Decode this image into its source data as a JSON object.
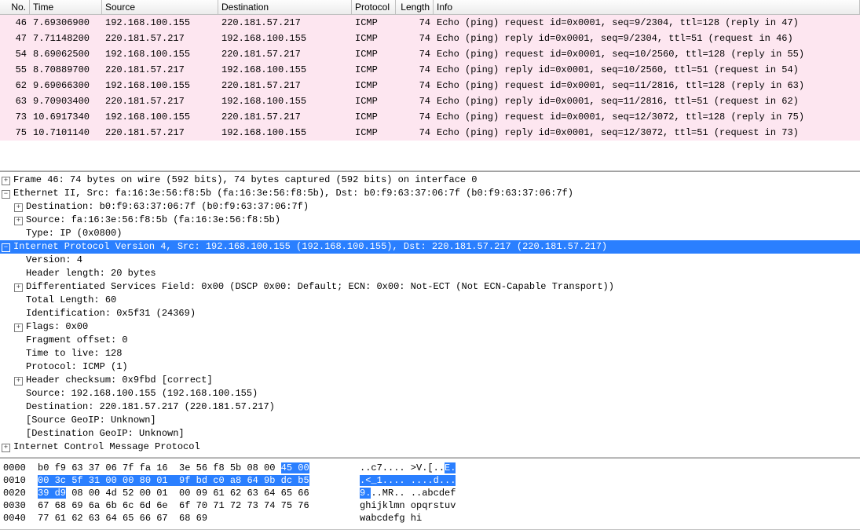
{
  "colors": {
    "row_bg": "#fde6f0",
    "select_bg": "#2a7fff",
    "select_fg": "#ffffff"
  },
  "packet_list": {
    "columns": [
      "No.",
      "Time",
      "Source",
      "Destination",
      "Protocol",
      "Length",
      "Info"
    ],
    "rows": [
      {
        "no": "46",
        "time": "7.69306900",
        "src": "192.168.100.155",
        "dst": "220.181.57.217",
        "proto": "ICMP",
        "len": "74",
        "info": "Echo (ping) request  id=0x0001, seq=9/2304, ttl=128 (reply in 47)"
      },
      {
        "no": "47",
        "time": "7.71148200",
        "src": "220.181.57.217",
        "dst": "192.168.100.155",
        "proto": "ICMP",
        "len": "74",
        "info": "Echo (ping) reply    id=0x0001, seq=9/2304, ttl=51 (request in 46)"
      },
      {
        "no": "54",
        "time": "8.69062500",
        "src": "192.168.100.155",
        "dst": "220.181.57.217",
        "proto": "ICMP",
        "len": "74",
        "info": "Echo (ping) request  id=0x0001, seq=10/2560, ttl=128 (reply in 55)"
      },
      {
        "no": "55",
        "time": "8.70889700",
        "src": "220.181.57.217",
        "dst": "192.168.100.155",
        "proto": "ICMP",
        "len": "74",
        "info": "Echo (ping) reply    id=0x0001, seq=10/2560, ttl=51 (request in 54)"
      },
      {
        "no": "62",
        "time": "9.69066300",
        "src": "192.168.100.155",
        "dst": "220.181.57.217",
        "proto": "ICMP",
        "len": "74",
        "info": "Echo (ping) request  id=0x0001, seq=11/2816, ttl=128 (reply in 63)"
      },
      {
        "no": "63",
        "time": "9.70903400",
        "src": "220.181.57.217",
        "dst": "192.168.100.155",
        "proto": "ICMP",
        "len": "74",
        "info": "Echo (ping) reply    id=0x0001, seq=11/2816, ttl=51 (request in 62)"
      },
      {
        "no": "73",
        "time": "10.6917340",
        "src": "192.168.100.155",
        "dst": "220.181.57.217",
        "proto": "ICMP",
        "len": "74",
        "info": "Echo (ping) request  id=0x0001, seq=12/3072, ttl=128 (reply in 75)"
      },
      {
        "no": "75",
        "time": "10.7101140",
        "src": "220.181.57.217",
        "dst": "192.168.100.155",
        "proto": "ICMP",
        "len": "74",
        "info": "Echo (ping) reply    id=0x0001, seq=12/3072, ttl=51 (request in 73)"
      }
    ]
  },
  "details": {
    "frame": "Frame 46: 74 bytes on wire (592 bits), 74 bytes captured (592 bits) on interface 0",
    "eth": "Ethernet II, Src: fa:16:3e:56:f8:5b (fa:16:3e:56:f8:5b), Dst: b0:f9:63:37:06:7f (b0:f9:63:37:06:7f)",
    "eth_dst": "Destination: b0:f9:63:37:06:7f (b0:f9:63:37:06:7f)",
    "eth_src": "Source: fa:16:3e:56:f8:5b (fa:16:3e:56:f8:5b)",
    "eth_type": "Type: IP (0x0800)",
    "ip": "Internet Protocol Version 4, Src: 192.168.100.155 (192.168.100.155), Dst: 220.181.57.217 (220.181.57.217)",
    "ip_ver": "Version: 4",
    "ip_hlen": "Header length: 20 bytes",
    "ip_dsf": "Differentiated Services Field: 0x00 (DSCP 0x00: Default; ECN: 0x00: Not-ECT (Not ECN-Capable Transport))",
    "ip_tlen": "Total Length: 60",
    "ip_id": "Identification: 0x5f31 (24369)",
    "ip_flags": "Flags: 0x00",
    "ip_frag": "Fragment offset: 0",
    "ip_ttl": "Time to live: 128",
    "ip_proto": "Protocol: ICMP (1)",
    "ip_chk": "Header checksum: 0x9fbd [correct]",
    "ip_src": "Source: 192.168.100.155 (192.168.100.155)",
    "ip_dst": "Destination: 220.181.57.217 (220.181.57.217)",
    "ip_geo_s": "[Source GeoIP: Unknown]",
    "ip_geo_d": "[Destination GeoIP: Unknown]",
    "icmp": "Internet Control Message Protocol"
  },
  "hex": {
    "lines": [
      {
        "off": "0000",
        "p1": "b0 f9 63 37 06 7f fa 16  3e 56 f8 5b 08 00 ",
        "h1": "45 00",
        "p2": "",
        "a1": "..c7.... >V.[..",
        "ah": "E.",
        "a2": ""
      },
      {
        "off": "0010",
        "p1": "",
        "h1": "00 3c 5f 31 00 00 80 01  9f bd c0 a8 64 9b dc b5",
        "p2": "",
        "a1": "",
        "ah": ".<_1.... ....d...",
        "a2": ""
      },
      {
        "off": "0020",
        "p1": "",
        "h1": "39 d9",
        "p2": " 08 00 4d 52 00 01  00 09 61 62 63 64 65 66",
        "a1": "",
        "ah": "9.",
        "a2": "..MR.. ..abcdef"
      },
      {
        "off": "0030",
        "p1": "67 68 69 6a 6b 6c 6d 6e  6f 70 71 72 73 74 75 76",
        "h1": "",
        "p2": "",
        "a1": "ghijklmn opqrstuv",
        "ah": "",
        "a2": ""
      },
      {
        "off": "0040",
        "p1": "77 61 62 63 64 65 66 67  68 69",
        "h1": "",
        "p2": "",
        "a1": "wabcdefg hi",
        "ah": "",
        "a2": ""
      }
    ]
  }
}
